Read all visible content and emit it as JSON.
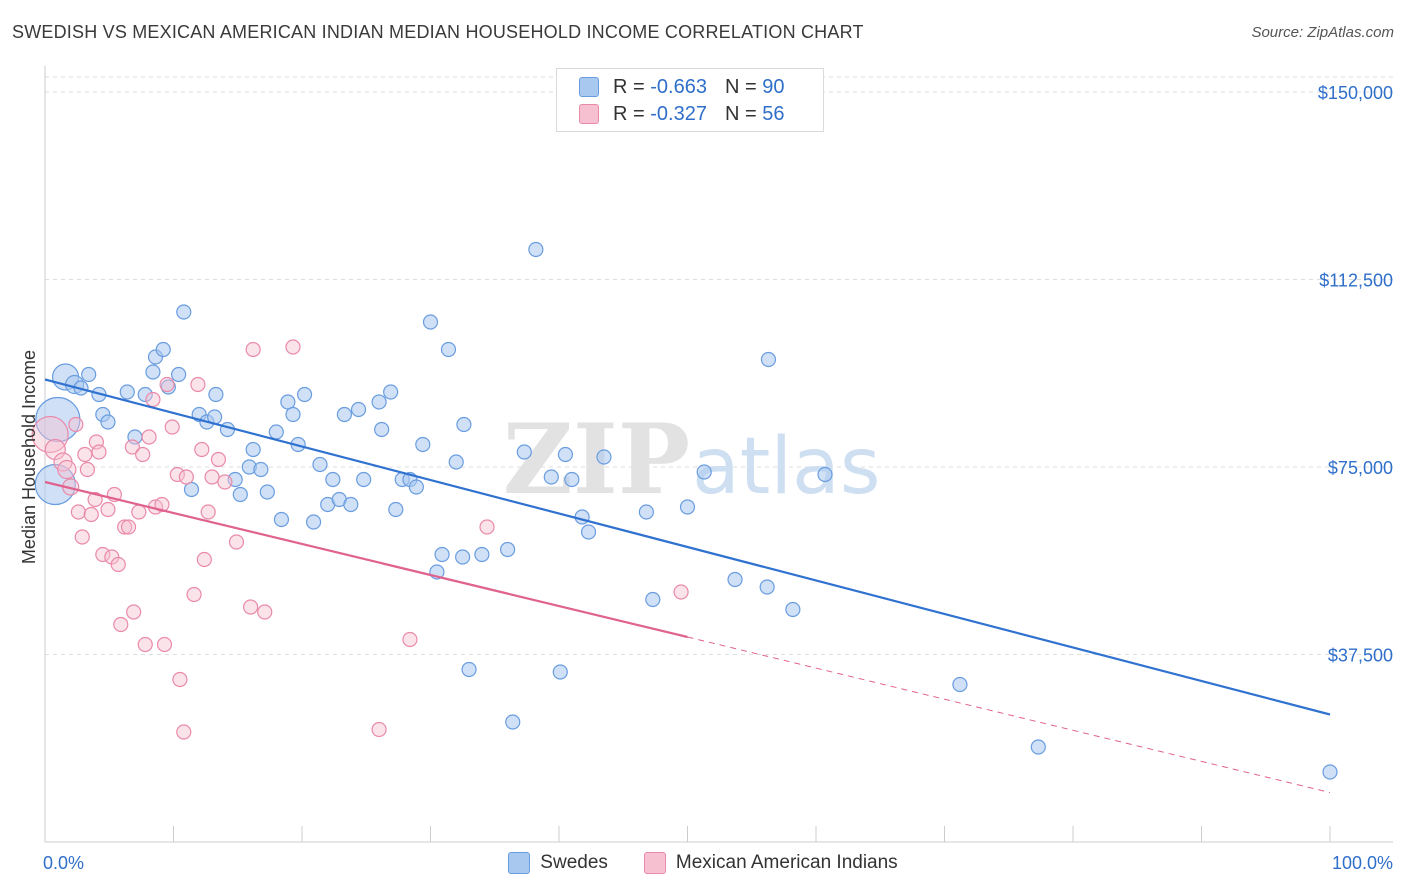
{
  "header": {
    "title": "SWEDISH VS MEXICAN AMERICAN INDIAN MEDIAN HOUSEHOLD INCOME CORRELATION CHART",
    "source": "Source: ZipAtlas.com"
  },
  "watermark": {
    "part1": "ZIP",
    "part2": "atlas"
  },
  "legend": {
    "r_label": "R =",
    "n_label": "N =",
    "rows": [
      {
        "r": "-0.663",
        "n": "90"
      },
      {
        "r": "-0.327",
        "n": "56"
      }
    ]
  },
  "colors": {
    "swedes_fill": "#a9c8f0",
    "swedes_stroke": "#6a9de0",
    "swedes_line": "#2f72cf",
    "mexican_fill": "#f7c0d0",
    "mexican_stroke": "#ea8aaa",
    "mexican_line": "#e0628e",
    "accent_text": "#2f6fca"
  },
  "chart_data": {
    "type": "scatter",
    "xlabel": "",
    "ylabel": "Median Household Income",
    "x_tick_labels": [
      "0.0%",
      "100.0%"
    ],
    "y_tick_labels": [
      "$37,500",
      "$75,000",
      "$112,500",
      "$150,000"
    ],
    "y_ticks": [
      37500,
      75000,
      112500,
      150000
    ],
    "xlim": [
      0,
      100
    ],
    "ylim": [
      0,
      154000
    ],
    "grid": true,
    "legend_position": "top-center",
    "series": [
      {
        "name": "Swedes",
        "trend": {
          "x": [
            0,
            100
          ],
          "y": [
            92500,
            25500
          ]
        },
        "points": [
          [
            1.0,
            84500,
            22
          ],
          [
            0.8,
            71500,
            20
          ],
          [
            1.6,
            93000,
            13
          ],
          [
            2.3,
            91500,
            9
          ],
          [
            2.8,
            90800,
            7
          ],
          [
            3.4,
            93500,
            7
          ],
          [
            4.2,
            89500,
            7
          ],
          [
            4.5,
            85500,
            7
          ],
          [
            4.9,
            84000,
            7
          ],
          [
            6.4,
            90000,
            7
          ],
          [
            7.0,
            81000,
            7
          ],
          [
            7.8,
            89500,
            7
          ],
          [
            8.4,
            94000,
            7
          ],
          [
            8.6,
            97000,
            7
          ],
          [
            9.2,
            98500,
            7
          ],
          [
            9.6,
            91000,
            7
          ],
          [
            10.4,
            93500,
            7
          ],
          [
            10.8,
            106000,
            7
          ],
          [
            11.4,
            70500,
            7
          ],
          [
            12.0,
            85500,
            7
          ],
          [
            12.6,
            84000,
            7
          ],
          [
            13.2,
            85000,
            7
          ],
          [
            13.3,
            89500,
            7
          ],
          [
            14.2,
            82500,
            7
          ],
          [
            14.8,
            72500,
            7
          ],
          [
            15.2,
            69500,
            7
          ],
          [
            15.9,
            75000,
            7
          ],
          [
            16.2,
            78500,
            7
          ],
          [
            16.8,
            74500,
            7
          ],
          [
            17.3,
            70000,
            7
          ],
          [
            18.0,
            82000,
            7
          ],
          [
            18.4,
            64500,
            7
          ],
          [
            18.9,
            88000,
            7
          ],
          [
            19.3,
            85500,
            7
          ],
          [
            19.7,
            79500,
            7
          ],
          [
            20.2,
            89500,
            7
          ],
          [
            20.9,
            64000,
            7
          ],
          [
            21.4,
            75500,
            7
          ],
          [
            22.0,
            67500,
            7
          ],
          [
            22.4,
            72500,
            7
          ],
          [
            22.9,
            68500,
            7
          ],
          [
            23.3,
            85500,
            7
          ],
          [
            23.8,
            67500,
            7
          ],
          [
            24.4,
            86500,
            7
          ],
          [
            24.8,
            72500,
            7
          ],
          [
            26.0,
            88000,
            7
          ],
          [
            26.2,
            82500,
            7
          ],
          [
            26.9,
            90000,
            7
          ],
          [
            27.3,
            66500,
            7
          ],
          [
            27.8,
            72500,
            7
          ],
          [
            28.4,
            72500,
            7
          ],
          [
            28.9,
            71000,
            7
          ],
          [
            29.4,
            79500,
            7
          ],
          [
            30.0,
            104000,
            7
          ],
          [
            30.5,
            54000,
            7
          ],
          [
            30.9,
            57500,
            7
          ],
          [
            31.4,
            98500,
            7
          ],
          [
            32.0,
            76000,
            7
          ],
          [
            32.5,
            57000,
            7
          ],
          [
            32.6,
            83500,
            7
          ],
          [
            33.0,
            34500,
            7
          ],
          [
            34.0,
            57500,
            7
          ],
          [
            36.0,
            58500,
            7
          ],
          [
            36.4,
            24000,
            7
          ],
          [
            37.3,
            78000,
            7
          ],
          [
            38.2,
            118500,
            7
          ],
          [
            39.4,
            73000,
            7
          ],
          [
            40.1,
            34000,
            7
          ],
          [
            40.5,
            77500,
            7
          ],
          [
            41.0,
            72500,
            7
          ],
          [
            41.8,
            65000,
            7
          ],
          [
            42.3,
            62000,
            7
          ],
          [
            43.5,
            77000,
            7
          ],
          [
            46.8,
            66000,
            7
          ],
          [
            47.3,
            48500,
            7
          ],
          [
            50.0,
            67000,
            7
          ],
          [
            51.3,
            74000,
            7
          ],
          [
            53.7,
            52500,
            7
          ],
          [
            56.2,
            51000,
            7
          ],
          [
            56.3,
            96500,
            7
          ],
          [
            58.2,
            46500,
            7
          ],
          [
            60.7,
            73500,
            7
          ],
          [
            71.2,
            31500,
            7
          ],
          [
            77.3,
            19000,
            7
          ],
          [
            100.0,
            14000,
            7
          ]
        ]
      },
      {
        "name": "Mexican American Indians",
        "trend": {
          "x": [
            0,
            50
          ],
          "y": [
            72000,
            41000
          ]
        },
        "trend_ext": {
          "x": [
            50,
            100
          ],
          "y": [
            41000,
            9900
          ]
        },
        "points": [
          [
            0.4,
            81500,
            18
          ],
          [
            0.8,
            78500,
            10
          ],
          [
            1.4,
            76000,
            9
          ],
          [
            1.7,
            74500,
            9
          ],
          [
            2.0,
            71000,
            8
          ],
          [
            2.4,
            83500,
            7
          ],
          [
            2.6,
            66000,
            7
          ],
          [
            2.9,
            61000,
            7
          ],
          [
            3.1,
            77500,
            7
          ],
          [
            3.3,
            74500,
            7
          ],
          [
            3.6,
            65500,
            7
          ],
          [
            3.9,
            68500,
            7
          ],
          [
            4.0,
            80000,
            7
          ],
          [
            4.2,
            78000,
            7
          ],
          [
            4.5,
            57500,
            7
          ],
          [
            4.9,
            66500,
            7
          ],
          [
            5.2,
            57000,
            7
          ],
          [
            5.4,
            69500,
            7
          ],
          [
            5.7,
            55500,
            7
          ],
          [
            5.9,
            43500,
            7
          ],
          [
            6.2,
            63000,
            7
          ],
          [
            6.5,
            63000,
            7
          ],
          [
            6.8,
            79000,
            7
          ],
          [
            6.9,
            46000,
            7
          ],
          [
            7.3,
            66000,
            7
          ],
          [
            7.6,
            77500,
            7
          ],
          [
            7.8,
            39500,
            7
          ],
          [
            8.1,
            81000,
            7
          ],
          [
            8.4,
            88500,
            7
          ],
          [
            8.6,
            67000,
            7
          ],
          [
            9.1,
            67500,
            7
          ],
          [
            9.3,
            39500,
            7
          ],
          [
            9.5,
            91500,
            7
          ],
          [
            9.9,
            83000,
            7
          ],
          [
            10.3,
            73500,
            7
          ],
          [
            10.5,
            32500,
            7
          ],
          [
            10.8,
            22000,
            7
          ],
          [
            11.0,
            73000,
            7
          ],
          [
            11.6,
            49500,
            7
          ],
          [
            11.9,
            91500,
            7
          ],
          [
            12.2,
            78500,
            7
          ],
          [
            12.4,
            56500,
            7
          ],
          [
            12.7,
            66000,
            7
          ],
          [
            13.0,
            73000,
            7
          ],
          [
            13.5,
            76500,
            7
          ],
          [
            14.0,
            72000,
            7
          ],
          [
            14.9,
            60000,
            7
          ],
          [
            16.0,
            47000,
            7
          ],
          [
            16.2,
            98500,
            7
          ],
          [
            17.1,
            46000,
            7
          ],
          [
            19.3,
            99000,
            7
          ],
          [
            26.0,
            22500,
            7
          ],
          [
            28.4,
            40500,
            7
          ],
          [
            34.4,
            63000,
            7
          ],
          [
            49.5,
            50000,
            7
          ]
        ]
      }
    ]
  }
}
